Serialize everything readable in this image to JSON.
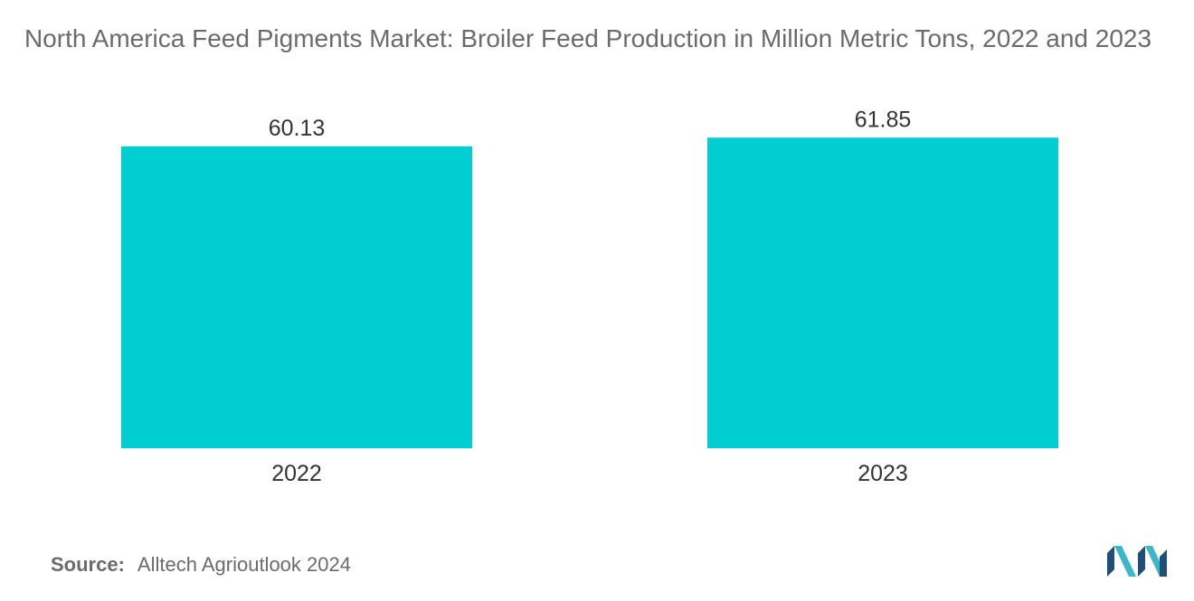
{
  "title": "North America Feed Pigments Market: Broiler Feed Production in Million Metric Tons, 2022 and 2023",
  "source": {
    "label": "Source:",
    "text": "Alltech Agrioutlook 2024"
  },
  "colors": {
    "bar": "#00CED1",
    "text": "#6b6b6b",
    "logo_dark": "#1f4e79",
    "logo_light": "#3ab8c9"
  },
  "logo_icon": "mordor-intelligence-logo-icon",
  "chart_data": {
    "type": "bar",
    "categories": [
      "2022",
      "2023"
    ],
    "values": [
      60.13,
      61.85
    ],
    "data_labels": [
      "60.13",
      "61.85"
    ],
    "xlabel": "",
    "ylabel": "",
    "ylim": [
      0,
      65
    ],
    "grid": false,
    "legend": "none"
  }
}
